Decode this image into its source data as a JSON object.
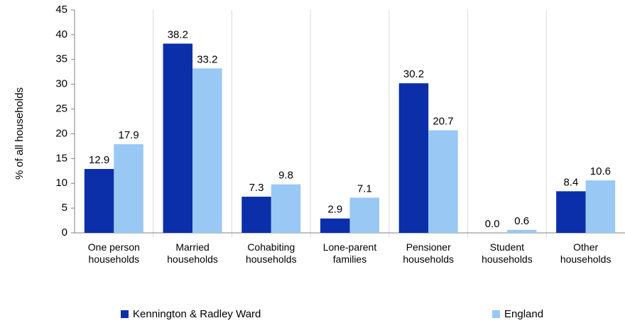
{
  "chart_data": {
    "type": "bar",
    "y_label": "% of all households",
    "categories": [
      [
        "One person",
        "households"
      ],
      [
        "Married",
        "households"
      ],
      [
        "Cohabiting",
        "households"
      ],
      [
        "Lone-parent",
        "families"
      ],
      [
        "Pensioner",
        "households"
      ],
      [
        "Student",
        "households"
      ],
      [
        "Other",
        "households"
      ]
    ],
    "series": [
      {
        "name": "Kennington & Radley Ward",
        "color": "#0a2fa8",
        "values": [
          12.9,
          38.2,
          7.3,
          2.9,
          30.2,
          0,
          8.4
        ],
        "value_labels": [
          "12.9",
          "38.2",
          "7.3",
          "2.9",
          "30.2",
          "0.0",
          "8.4"
        ]
      },
      {
        "name": "England",
        "color": "#99c8f5",
        "values": [
          17.9,
          33.2,
          9.8,
          7.1,
          20.7,
          0.6,
          10.6
        ],
        "value_labels": [
          "17.9",
          "33.2",
          "9.8",
          "7.1",
          "20.7",
          "0.6",
          "10.6"
        ]
      }
    ],
    "ylim": [
      0,
      45
    ],
    "yticks": [
      0,
      5,
      10,
      15,
      20,
      25,
      30,
      35,
      40,
      45
    ],
    "grid": false
  }
}
